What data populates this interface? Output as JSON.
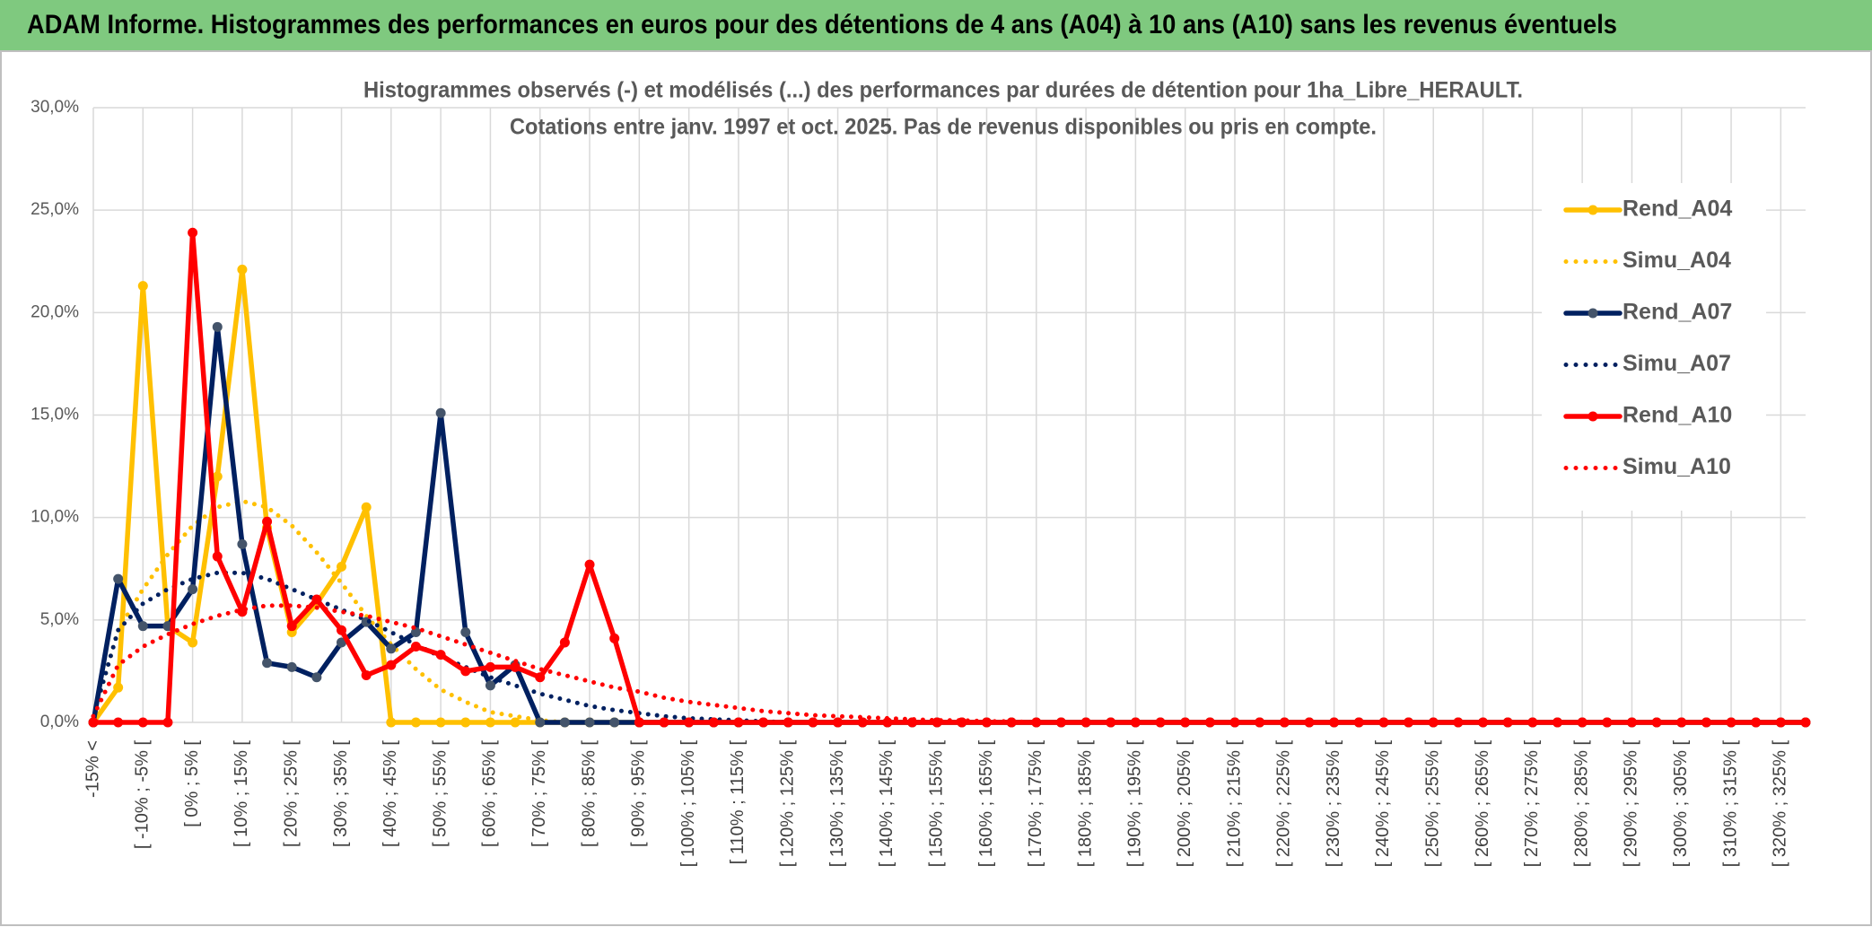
{
  "header": {
    "title": "ADAM Informe. Histogrammes des performances en euros pour des détentions de 4 ans (A04) à 10 ans (A10) sans les revenus éventuels"
  },
  "chart_data": {
    "type": "line",
    "title": "Histogrammes observés (-) et modélisés (...) des performances par durées de détention pour 1ha_Libre_HERAULT.",
    "subtitle": "Cotations entre janv. 1997 et oct. 2025. Pas de revenus disponibles ou pris en compte.",
    "categories": [
      "-15% <",
      null,
      "[ -10% ; -5% [",
      null,
      "[ 0% ; 5% [",
      null,
      "[ 10% ; 15% [",
      null,
      "[ 20% ; 25% [",
      null,
      "[ 30% ; 35% [",
      null,
      "[ 40% ; 45% [",
      null,
      "[ 50% ; 55% [",
      null,
      "[ 60% ; 65% [",
      null,
      "[ 70% ; 75% [",
      null,
      "[ 80% ; 85% [",
      null,
      "[ 90% ; 95% [",
      null,
      "[ 100% ; 105% [",
      null,
      "[ 110% ; 115% [",
      null,
      "[ 120% ; 125% [",
      null,
      "[ 130% ; 135% [",
      null,
      "[ 140% ; 145% [",
      null,
      "[ 150% ; 155% [",
      null,
      "[ 160% ; 165% [",
      null,
      "[ 170% ; 175% [",
      null,
      "[ 180% ; 185% [",
      null,
      "[ 190% ; 195% [",
      null,
      "[ 200% ; 205% [",
      null,
      "[ 210% ; 215% [",
      null,
      "[ 220% ; 225% [",
      null,
      "[ 230% ; 235% [",
      null,
      "[ 240% ; 245% [",
      null,
      "[ 250% ; 255% [",
      null,
      "[ 260% ; 265% [",
      null,
      "[ 270% ; 275% [",
      null,
      "[ 280% ; 285% [",
      null,
      "[ 290% ; 295% [",
      null,
      "[ 300% ; 305% [",
      null,
      "[ 310% ; 315% [",
      null,
      "[ 320% ; 325% [",
      null
    ],
    "series": [
      {
        "name": "Rend_A04",
        "color": "#ffc000",
        "style": "solid",
        "markers": true,
        "marker_color": "#ffc000",
        "values": [
          0,
          1.7,
          21.3,
          4.7,
          3.9,
          12,
          22.1,
          9.5,
          4.4,
          5.8,
          7.6,
          10.5,
          0,
          0,
          0,
          0,
          0,
          0,
          0,
          0,
          0,
          0,
          0,
          0,
          0,
          0,
          0,
          0,
          0,
          0,
          0,
          0,
          0,
          0,
          0,
          0,
          0,
          0,
          0,
          0,
          0,
          0,
          0,
          0,
          0,
          0,
          0,
          0,
          0,
          0,
          0,
          0,
          0,
          0,
          0,
          0,
          0,
          0,
          0,
          0,
          0,
          0,
          0,
          0,
          0,
          0,
          0,
          0,
          0,
          0
        ]
      },
      {
        "name": "Simu_A04",
        "color": "#ffc000",
        "style": "dotted",
        "markers": false,
        "values": [
          0.3,
          4.5,
          6.5,
          8.2,
          9.6,
          10.5,
          10.8,
          10.5,
          9.6,
          8.3,
          6.8,
          5.2,
          3.8,
          2.6,
          1.6,
          1,
          0.5,
          0.3,
          0.1,
          0,
          0,
          0,
          0,
          0,
          0,
          0,
          0,
          0,
          0,
          0,
          0,
          0,
          0,
          0,
          0,
          0,
          0,
          0,
          0,
          0,
          0,
          0,
          0,
          0,
          0,
          0,
          0,
          0,
          0,
          0,
          0,
          0,
          0,
          0,
          0,
          0,
          0,
          0,
          0,
          0,
          0,
          0,
          0,
          0,
          0,
          0,
          0,
          0,
          0,
          0
        ]
      },
      {
        "name": "Rend_A07",
        "color": "#002060",
        "style": "solid",
        "markers": true,
        "marker_color": "#44546a",
        "values": [
          0,
          7,
          4.7,
          4.7,
          6.5,
          19.3,
          8.7,
          2.9,
          2.7,
          2.2,
          3.9,
          4.9,
          3.6,
          4.4,
          15.1,
          4.4,
          1.8,
          2.8,
          0,
          0,
          0,
          0,
          0,
          0,
          0,
          0,
          0,
          0,
          0,
          0,
          0,
          0,
          0,
          0,
          0,
          0,
          0,
          0,
          0,
          0,
          0,
          0,
          0,
          0,
          0,
          0,
          0,
          0,
          0,
          0,
          0,
          0,
          0,
          0,
          0,
          0,
          0,
          0,
          0,
          0,
          0,
          0,
          0,
          0,
          0,
          0,
          0,
          0,
          0,
          0
        ]
      },
      {
        "name": "Simu_A07",
        "color": "#002060",
        "style": "dotted",
        "markers": false,
        "values": [
          0.3,
          4.5,
          5.8,
          6.5,
          7,
          7.3,
          7.3,
          7,
          6.5,
          6,
          5.5,
          5,
          4.4,
          3.8,
          3.2,
          2.7,
          2.2,
          1.8,
          1.4,
          1.1,
          0.8,
          0.6,
          0.45,
          0.3,
          0.2,
          0.15,
          0.1,
          0.05,
          0,
          0,
          0,
          0,
          0,
          0,
          0,
          0,
          0,
          0,
          0,
          0,
          0,
          0,
          0,
          0,
          0,
          0,
          0,
          0,
          0,
          0,
          0,
          0,
          0,
          0,
          0,
          0,
          0,
          0,
          0,
          0,
          0,
          0,
          0,
          0,
          0,
          0,
          0,
          0,
          0,
          0
        ]
      },
      {
        "name": "Rend_A10",
        "color": "#ff0000",
        "style": "solid",
        "markers": true,
        "marker_color": "#ff0000",
        "values": [
          0,
          0,
          0,
          0,
          23.9,
          8.1,
          5.4,
          9.8,
          4.7,
          6,
          4.5,
          2.3,
          2.8,
          3.7,
          3.3,
          2.5,
          2.7,
          2.7,
          2.2,
          3.9,
          7.7,
          4.1,
          0,
          0,
          0,
          0,
          0,
          0,
          0,
          0,
          0,
          0,
          0,
          0,
          0,
          0,
          0,
          0,
          0,
          0,
          0,
          0,
          0,
          0,
          0,
          0,
          0,
          0,
          0,
          0,
          0,
          0,
          0,
          0,
          0,
          0,
          0,
          0,
          0,
          0,
          0,
          0,
          0,
          0,
          0,
          0,
          0,
          0,
          0,
          0
        ]
      },
      {
        "name": "Simu_A10",
        "color": "#ff0000",
        "style": "dotted",
        "markers": false,
        "values": [
          0.3,
          2.8,
          3.7,
          4.3,
          4.8,
          5.2,
          5.5,
          5.7,
          5.7,
          5.6,
          5.4,
          5.2,
          4.9,
          4.6,
          4.2,
          3.8,
          3.4,
          3,
          2.6,
          2.3,
          2,
          1.7,
          1.5,
          1.2,
          1,
          0.85,
          0.7,
          0.55,
          0.45,
          0.35,
          0.3,
          0.25,
          0.2,
          0.15,
          0.1,
          0.1,
          0.05,
          0.05,
          0,
          0,
          0,
          0,
          0,
          0,
          0,
          0,
          0,
          0,
          0,
          0,
          0,
          0,
          0,
          0,
          0,
          0,
          0,
          0,
          0,
          0,
          0,
          0,
          0,
          0,
          0,
          0,
          0,
          0,
          0,
          0
        ]
      }
    ],
    "ylim": [
      0,
      30
    ],
    "yticks": [
      {
        "value": 0,
        "label": "0,0%"
      },
      {
        "value": 5,
        "label": "5,0%"
      },
      {
        "value": 10,
        "label": "10,0%"
      },
      {
        "value": 15,
        "label": "15,0%"
      },
      {
        "value": 20,
        "label": "20,0%"
      },
      {
        "value": 25,
        "label": "25,0%"
      },
      {
        "value": 30,
        "label": "30,0%"
      }
    ],
    "grid": true,
    "legend": "right"
  }
}
